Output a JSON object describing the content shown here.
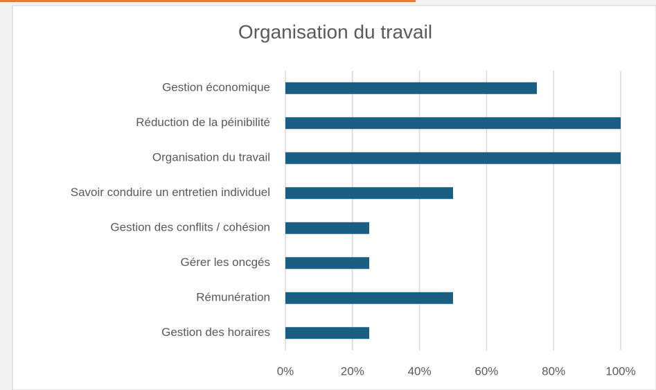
{
  "chart_data": {
    "type": "bar",
    "orientation": "horizontal",
    "title": "Organisation du travail",
    "categories": [
      "Gestion économique",
      "Réduction de la péinibilité",
      "Organisation du travail",
      "Savoir conduire un entretien individuel",
      "Gestion des conflits / cohésion",
      "Gérer les oncgés",
      "Rémunération",
      "Gestion des horaires"
    ],
    "values": [
      75,
      100,
      100,
      50,
      25,
      25,
      50,
      25
    ],
    "color": "#1b5e83",
    "xlim": [
      0,
      100
    ],
    "xticks": [
      {
        "value": 0,
        "label": "0%"
      },
      {
        "value": 20,
        "label": "20%"
      },
      {
        "value": 40,
        "label": "40%"
      },
      {
        "value": 60,
        "label": "60%"
      },
      {
        "value": 80,
        "label": "80%"
      },
      {
        "value": 100,
        "label": "100%"
      }
    ],
    "grid": true
  }
}
